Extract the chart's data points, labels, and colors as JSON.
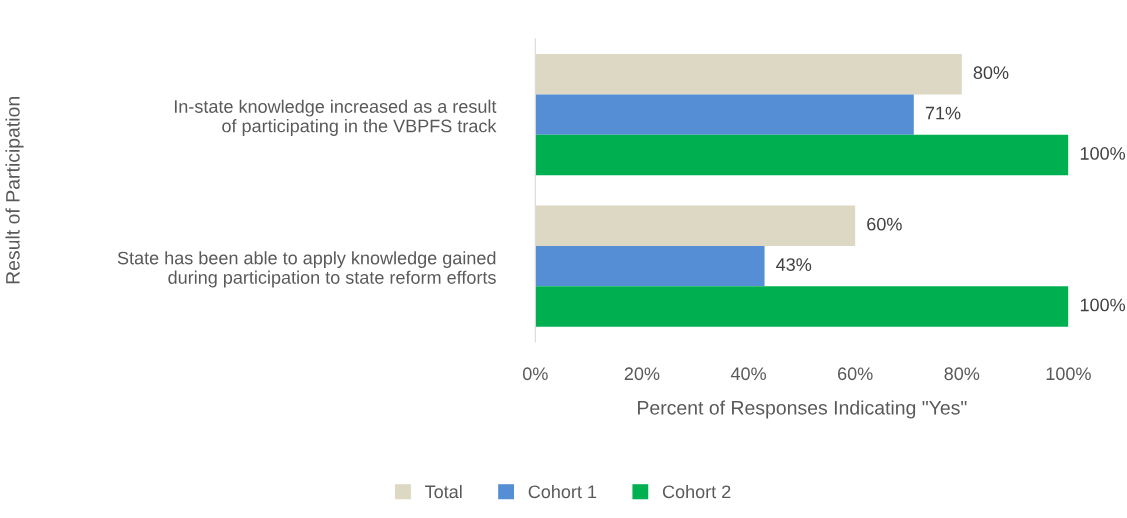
{
  "chart_data": {
    "type": "bar",
    "orientation": "horizontal",
    "xlabel": "Percent of Responses Indicating \"Yes\"",
    "ylabel": "Result of Participation",
    "categories": [
      "In-state knowledge increased as a result of participating in the VBPFS track",
      "State has been able to apply knowledge gained during participation to state reform efforts"
    ],
    "series": [
      {
        "name": "Total",
        "color": "#ddd8c4",
        "values": [
          80,
          60
        ],
        "value_labels": [
          "80%",
          "60%"
        ]
      },
      {
        "name": "Cohort 1",
        "color": "#558ed5",
        "values": [
          71,
          43
        ],
        "value_labels": [
          "71%",
          "43%"
        ]
      },
      {
        "name": "Cohort 2",
        "color": "#00b050",
        "values": [
          100,
          100
        ],
        "value_labels": [
          "100%",
          "100%"
        ]
      }
    ],
    "xlim": [
      0,
      100
    ],
    "xticks": [
      {
        "value": 0,
        "label": "0%"
      },
      {
        "value": 20,
        "label": "20%"
      },
      {
        "value": 40,
        "label": "40%"
      },
      {
        "value": 60,
        "label": "60%"
      },
      {
        "value": 80,
        "label": "80%"
      },
      {
        "value": 100,
        "label": "100%"
      }
    ],
    "grid": false,
    "legend": "bottom"
  }
}
